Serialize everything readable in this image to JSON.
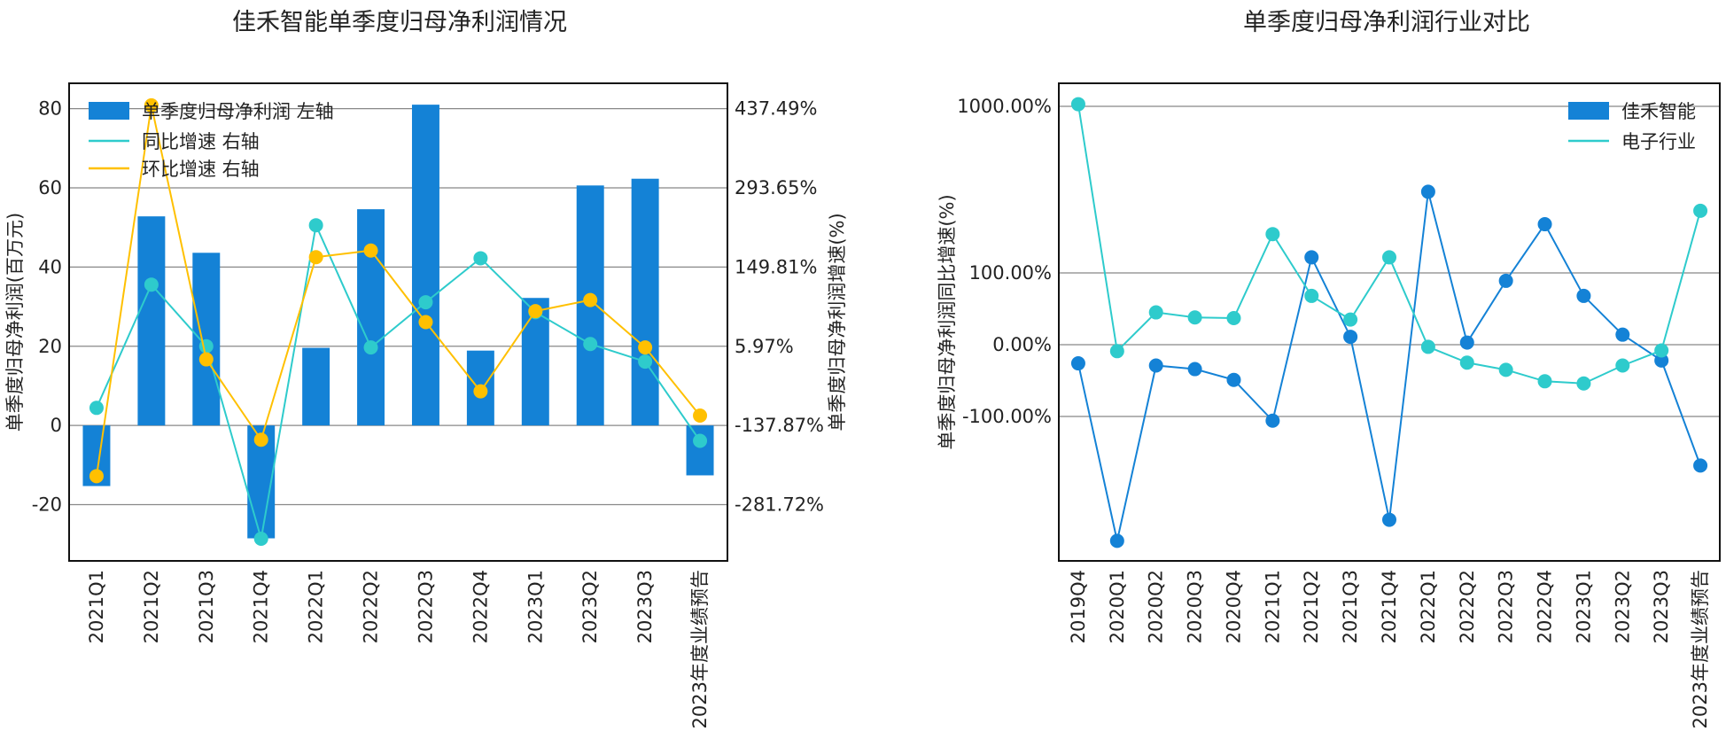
{
  "chart_data": [
    {
      "type": "bar+line",
      "title": "佳禾智能单季度归母净利润情况",
      "categories": [
        "2021Q1",
        "2021Q2",
        "2021Q3",
        "2021Q4",
        "2022Q1",
        "2022Q2",
        "2022Q3",
        "2022Q4",
        "2023Q1",
        "2023Q2",
        "2023Q3",
        "2023年度业绩预告"
      ],
      "ylabel": "单季度归母净利润(百万元)",
      "y2label": "单季度归母净利润增速(%)",
      "ylim": [
        -34.2,
        86.4
      ],
      "yticks": [
        "-20",
        "0",
        "20",
        "40",
        "60",
        "80"
      ],
      "y2ticks": [
        "-281.72%",
        "-137.87%",
        "5.97%",
        "149.81%",
        "293.65%",
        "437.49%"
      ],
      "y2_at_y0": -137.87,
      "y2_per_y": 7.192,
      "legend_position": "top-left",
      "series": [
        {
          "name": "单季度归母净利润 左轴",
          "kind": "bar",
          "color": "#1482d6",
          "values": [
            -15.3,
            52.8,
            43.6,
            -28.5,
            19.6,
            54.6,
            81.0,
            18.9,
            32.2,
            60.6,
            62.3,
            -12.6
          ]
        },
        {
          "name": "同比增速 右轴",
          "kind": "line",
          "color": "#2ecbcc",
          "values": [
            -105.9,
            117.9,
            6.0,
            -343.6,
            225.7,
            3.8,
            85.9,
            165.8,
            67.8,
            10.0,
            -21.9,
            -165.8
          ]
        },
        {
          "name": "环比增速 右轴",
          "kind": "line",
          "color": "#ffc000",
          "values": [
            -229.9,
            443.4,
            -17.8,
            -163.8,
            167.8,
            179.8,
            49.8,
            -75.9,
            69.8,
            89.9,
            3.8,
            -119.9
          ]
        }
      ]
    },
    {
      "type": "line",
      "title": "单季度归母净利润行业对比",
      "categories": [
        "2019Q4",
        "2020Q1",
        "2020Q2",
        "2020Q3",
        "2020Q4",
        "2021Q1",
        "2021Q2",
        "2021Q3",
        "2021Q4",
        "2022Q1",
        "2022Q2",
        "2022Q3",
        "2022Q4",
        "2023Q1",
        "2023Q2",
        "2023Q3",
        "2023年度业绩预告"
      ],
      "ylabel": "单季度归母净利润同比增速(%)",
      "yscale": "symlog",
      "yticks": [
        {
          "v": -100,
          "label": "-100.00%"
        },
        {
          "v": 0,
          "label": "0.00%"
        },
        {
          "v": 100,
          "label": "100.00%"
        },
        {
          "v": 1000,
          "label": "1000.00%"
        }
      ],
      "legend_position": "top-right",
      "series": [
        {
          "name": "佳禾智能",
          "color": "#1482d6",
          "values": [
            -26,
            -558,
            -29,
            -34,
            -49,
            -106,
            124,
            11,
            -417,
            307,
            3,
            89,
            196,
            68,
            14,
            -22,
            -197
          ]
        },
        {
          "name": "电子行业",
          "color": "#2ecbcc",
          "values": [
            1030,
            -9,
            45,
            38,
            37,
            171,
            68,
            35,
            124,
            -3,
            -25,
            -35,
            -51,
            -54,
            -29,
            -8,
            236
          ]
        }
      ]
    }
  ]
}
